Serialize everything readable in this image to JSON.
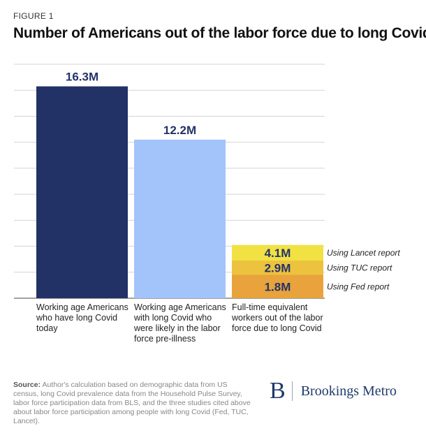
{
  "figure_label": "FIGURE 1",
  "title": "Number of Americans out of the labor force due to long Covid",
  "chart_data": {
    "type": "bar",
    "title": "Number of Americans out of the labor force due to long Covid",
    "unit": "M",
    "ylim": [
      0,
      18
    ],
    "grid": true,
    "categories": [
      [
        "Working age Americans",
        "who have long Covid",
        "today"
      ],
      [
        "Working age Americans",
        "with long Covid who",
        "were likely in the labor",
        "force pre-illness"
      ],
      [
        "Full-time equivalent",
        "workers out of the labor",
        "force due to long Covid"
      ]
    ],
    "bars": [
      {
        "value": 16.3,
        "label": "16.3M",
        "color": "#233266"
      },
      {
        "value": 12.2,
        "label": "12.2M",
        "color": "#a3c3fb"
      }
    ],
    "stacked": {
      "segments": [
        {
          "value": 1.8,
          "label": "1.8M",
          "annotation": "Using Fed report",
          "color": "#e8a33c"
        },
        {
          "value": 1.1,
          "label": "2.9M",
          "annotation": "Using TUC report",
          "color": "#ecc23e"
        },
        {
          "value": 1.2,
          "label": "4.1M",
          "annotation": "Using Lancet report",
          "color": "#f2e143"
        }
      ]
    }
  },
  "source": {
    "label": "Source:",
    "text": "Author's calculation based on demographic data from US census, long Covid prevalence data from the Household Pulse Survey, labor force participation data from BLS, and the three studies cited above about labor force participation among people with long Covid (Fed, TUC, Lancet)."
  },
  "logo": {
    "mark": "B",
    "name": "Brookings Metro"
  }
}
